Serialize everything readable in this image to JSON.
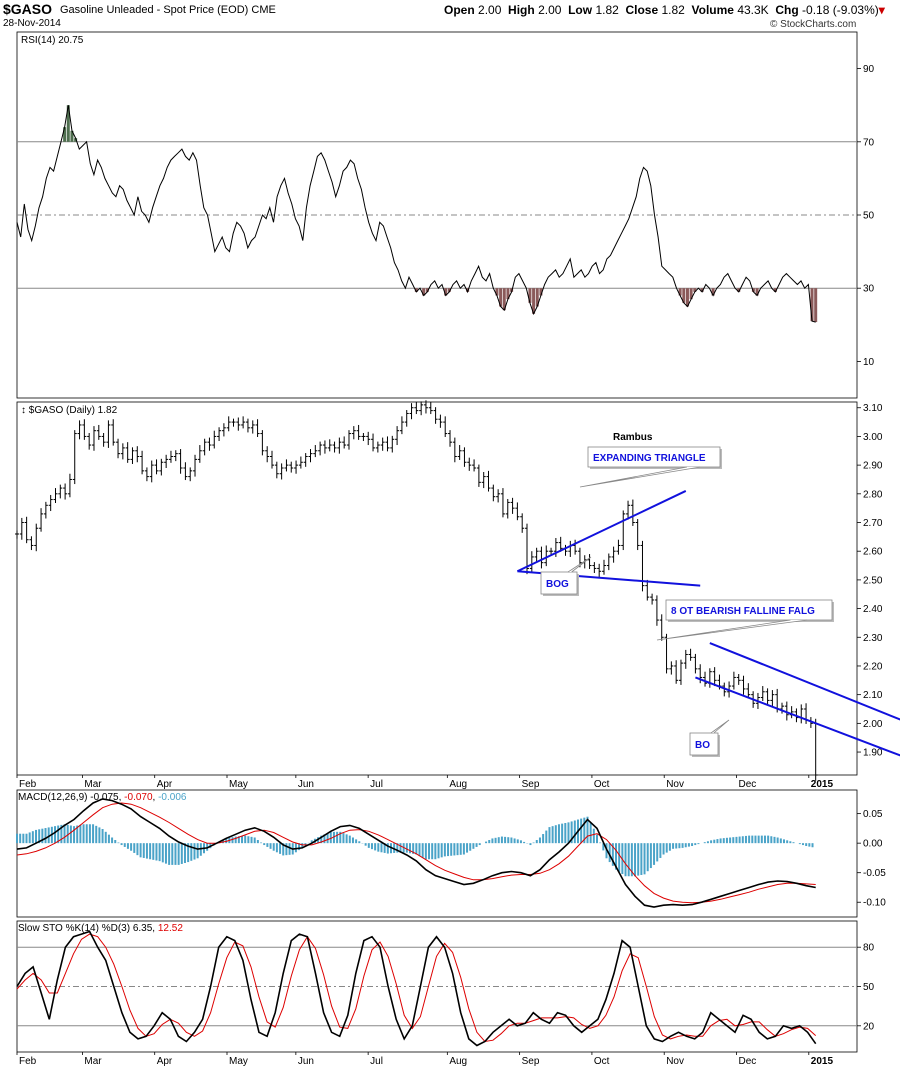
{
  "header": {
    "symbol": "$GASO",
    "name": "Gasoline Unleaded - Spot Price (EOD)",
    "exchange": "CME",
    "date": "28-Nov-2014",
    "open_label": "Open",
    "open": "2.00",
    "high_label": "High",
    "high": "2.00",
    "low_label": "Low",
    "low": "1.82",
    "close_label": "Close",
    "close": "1.82",
    "volume_label": "Volume",
    "volume": "43.3K",
    "chg_label": "Chg",
    "chg": "-0.18 (-9.03%)",
    "brand": "© StockCharts.com"
  },
  "colors": {
    "price": "#000000",
    "annotation": "#1111dd",
    "macd_hist": "#4aa3c8",
    "signal": "#dd0000",
    "rsi_high": "#4f6f4f",
    "rsi_low": "#8b5a5a",
    "grid": "#888888"
  },
  "x_axis": {
    "months": [
      "Feb",
      "Mar",
      "Apr",
      "May",
      "Jun",
      "Jul",
      "Aug",
      "Sep",
      "Oct",
      "Nov",
      "Dec",
      "2015"
    ],
    "month_index": [
      0,
      19,
      40,
      61,
      81,
      102,
      125,
      146,
      167,
      188,
      209,
      230
    ],
    "n_days": 245
  },
  "chart_data": [
    {
      "type": "line",
      "panel": "RSI",
      "legend": "RSI(14) 20.75",
      "ylim": [
        0,
        100
      ],
      "y_ticks": [
        10,
        30,
        50,
        70,
        90
      ],
      "ref_lines": [
        30,
        50,
        70
      ],
      "series": [
        {
          "values": [
            48,
            44,
            53,
            46,
            43,
            47,
            52,
            55,
            60,
            63,
            62,
            66,
            70,
            74,
            80,
            73,
            71,
            68,
            69,
            70,
            64,
            61,
            65,
            63,
            60,
            58,
            56,
            55,
            58,
            57,
            54,
            52,
            50,
            55,
            51,
            50,
            48,
            52,
            55,
            58,
            60,
            63,
            65,
            66,
            67,
            68,
            66,
            65,
            67,
            65,
            58,
            52,
            50,
            45,
            40,
            42,
            44,
            41,
            40,
            45,
            48,
            47,
            45,
            41,
            43,
            44,
            47,
            50,
            49,
            52,
            48,
            55,
            58,
            60,
            56,
            53,
            49,
            47,
            43,
            52,
            58,
            62,
            66,
            67,
            65,
            62,
            59,
            55,
            58,
            62,
            63,
            65,
            64,
            60,
            57,
            52,
            48,
            45,
            43,
            48,
            47,
            44,
            41,
            37,
            35,
            32,
            30,
            33,
            31,
            29,
            30,
            28,
            29,
            31,
            32,
            30,
            31,
            28,
            29,
            31,
            32,
            30,
            31,
            29,
            32,
            34,
            36,
            33,
            32,
            34,
            30,
            28,
            25,
            24,
            27,
            29,
            33,
            34,
            32,
            30,
            26,
            23,
            25,
            28,
            31,
            33,
            34,
            35,
            33,
            34,
            36,
            38,
            33,
            34,
            35,
            33,
            34,
            36,
            37,
            34,
            35,
            38,
            39,
            41,
            43,
            45,
            47,
            49,
            52,
            55,
            60,
            63,
            62,
            58,
            50,
            44,
            36,
            35,
            34,
            33,
            30,
            28,
            26,
            25,
            27,
            29,
            30,
            29,
            31,
            30,
            28,
            30,
            31,
            33,
            34,
            32,
            30,
            29,
            31,
            33,
            32,
            29,
            28,
            30,
            31,
            32,
            30,
            29,
            31,
            33,
            34,
            33,
            32,
            31,
            32,
            30,
            31,
            21,
            20.75
          ]
        }
      ]
    },
    {
      "type": "ohlc",
      "panel": "Price",
      "legend": "$GASO (Daily) 1.82",
      "ylim": [
        1.82,
        3.12
      ],
      "y_ticks": [
        1.9,
        2.0,
        2.1,
        2.2,
        2.3,
        2.4,
        2.5,
        2.6,
        2.7,
        2.8,
        2.9,
        3.0,
        3.1
      ],
      "closes": [
        2.66,
        2.7,
        2.64,
        2.62,
        2.68,
        2.73,
        2.76,
        2.78,
        2.8,
        2.82,
        2.8,
        2.85,
        3.01,
        3.04,
        3.0,
        2.97,
        3.02,
        3.0,
        2.98,
        3.04,
        2.98,
        2.94,
        2.96,
        2.92,
        2.95,
        2.93,
        2.88,
        2.86,
        2.9,
        2.88,
        2.91,
        2.92,
        2.93,
        2.94,
        2.89,
        2.86,
        2.88,
        2.92,
        2.95,
        2.98,
        2.97,
        3.0,
        3.02,
        3.03,
        3.05,
        3.05,
        3.04,
        3.05,
        3.03,
        3.04,
        3.01,
        2.95,
        2.93,
        2.9,
        2.87,
        2.89,
        2.9,
        2.89,
        2.9,
        2.91,
        2.93,
        2.94,
        2.95,
        2.97,
        2.96,
        2.97,
        2.96,
        2.98,
        2.97,
        3.01,
        3.02,
        3.0,
        3.0,
        2.99,
        2.96,
        2.97,
        2.98,
        2.96,
        2.99,
        3.02,
        3.05,
        3.08,
        3.1,
        3.09,
        3.11,
        3.1,
        3.09,
        3.06,
        3.05,
        3.01,
        2.98,
        2.93,
        2.95,
        2.91,
        2.9,
        2.89,
        2.84,
        2.86,
        2.82,
        2.79,
        2.8,
        2.73,
        2.77,
        2.75,
        2.72,
        2.68,
        2.54,
        2.58,
        2.6,
        2.56,
        2.6,
        2.6,
        2.63,
        2.61,
        2.6,
        2.62,
        2.6,
        2.56,
        2.57,
        2.55,
        2.54,
        2.53,
        2.55,
        2.58,
        2.6,
        2.62,
        2.73,
        2.76,
        2.7,
        2.62,
        2.48,
        2.44,
        2.43,
        2.36,
        2.3,
        2.19,
        2.2,
        2.15,
        2.21,
        2.24,
        2.23,
        2.19,
        2.16,
        2.14,
        2.18,
        2.15,
        2.13,
        2.11,
        2.13,
        2.16,
        2.15,
        2.12,
        2.1,
        2.07,
        2.09,
        2.11,
        2.08,
        2.1,
        2.05,
        2.06,
        2.03,
        2.04,
        2.02,
        2.05,
        2.01,
        2.0,
        1.82
      ]
    },
    {
      "type": "line",
      "panel": "MACD",
      "legend_prefix": "MACD(12,26,9)",
      "macd": "-0.075",
      "signal": "-0.070",
      "hist": "-0.006",
      "ylim": [
        -0.125,
        0.09
      ],
      "y_ticks": [
        0.05,
        0.0,
        -0.05,
        -0.1
      ],
      "series": [
        {
          "key": "macd",
          "values": [
            -0.01,
            -0.008,
            0.0,
            0.008,
            0.018,
            0.03,
            0.04,
            0.055,
            0.068,
            0.075,
            0.072,
            0.066,
            0.058,
            0.045,
            0.035,
            0.025,
            0.012,
            0.002,
            -0.005,
            -0.01,
            -0.008,
            0.0,
            0.008,
            0.015,
            0.022,
            0.026,
            0.02,
            0.01,
            -0.003,
            -0.01,
            -0.008,
            0.0,
            0.01,
            0.02,
            0.028,
            0.03,
            0.025,
            0.015,
            0.005,
            -0.005,
            -0.012,
            -0.02,
            -0.03,
            -0.045,
            -0.055,
            -0.06,
            -0.065,
            -0.07,
            -0.068,
            -0.062,
            -0.055,
            -0.05,
            -0.048,
            -0.05,
            -0.055,
            -0.045,
            -0.028,
            -0.015,
            0.0,
            0.02,
            0.04,
            0.025,
            -0.01,
            -0.04,
            -0.07,
            -0.09,
            -0.105,
            -0.108,
            -0.105,
            -0.104,
            -0.105,
            -0.104,
            -0.1,
            -0.095,
            -0.09,
            -0.085,
            -0.08,
            -0.075,
            -0.07,
            -0.066,
            -0.064,
            -0.065,
            -0.068,
            -0.072,
            -0.075
          ]
        },
        {
          "key": "signal",
          "values": [
            -0.02,
            -0.018,
            -0.014,
            -0.008,
            0.0,
            0.01,
            0.022,
            0.035,
            0.048,
            0.06,
            0.066,
            0.068,
            0.066,
            0.06,
            0.052,
            0.044,
            0.035,
            0.025,
            0.015,
            0.006,
            0.0,
            0.0,
            0.003,
            0.008,
            0.014,
            0.02,
            0.022,
            0.018,
            0.01,
            0.002,
            -0.003,
            -0.003,
            0.002,
            0.008,
            0.016,
            0.022,
            0.023,
            0.02,
            0.014,
            0.006,
            -0.002,
            -0.01,
            -0.018,
            -0.028,
            -0.038,
            -0.046,
            -0.052,
            -0.058,
            -0.062,
            -0.062,
            -0.06,
            -0.057,
            -0.054,
            -0.053,
            -0.053,
            -0.051,
            -0.045,
            -0.035,
            -0.022,
            -0.005,
            0.012,
            0.016,
            0.006,
            -0.012,
            -0.035,
            -0.055,
            -0.072,
            -0.085,
            -0.093,
            -0.098,
            -0.1,
            -0.101,
            -0.1,
            -0.098,
            -0.095,
            -0.091,
            -0.087,
            -0.083,
            -0.078,
            -0.074,
            -0.07,
            -0.068,
            -0.068,
            -0.069,
            -0.07
          ]
        }
      ]
    },
    {
      "type": "line",
      "panel": "Slow STO",
      "legend_prefix": "Slow STO %K(14) %D(3)",
      "k": "6.35",
      "d": "12.52",
      "ylim": [
        0,
        100
      ],
      "y_ticks": [
        20,
        50,
        80
      ],
      "ref_lines": [
        20,
        50,
        80
      ],
      "series": [
        {
          "key": "k",
          "values": [
            50,
            60,
            65,
            45,
            25,
            55,
            80,
            88,
            90,
            92,
            80,
            70,
            50,
            30,
            15,
            10,
            12,
            20,
            30,
            25,
            12,
            8,
            15,
            25,
            50,
            80,
            88,
            85,
            70,
            40,
            15,
            12,
            30,
            60,
            85,
            90,
            88,
            60,
            30,
            15,
            12,
            28,
            60,
            85,
            88,
            80,
            50,
            25,
            10,
            20,
            50,
            80,
            88,
            80,
            60,
            30,
            10,
            5,
            8,
            15,
            20,
            25,
            20,
            22,
            30,
            25,
            22,
            30,
            28,
            20,
            15,
            20,
            25,
            40,
            60,
            85,
            80,
            50,
            20,
            10,
            8,
            12,
            15,
            12,
            10,
            15,
            30,
            25,
            20,
            15,
            28,
            25,
            15,
            10,
            12,
            20,
            18,
            20,
            15,
            6.35
          ]
        },
        {
          "key": "d",
          "values": [
            48,
            55,
            60,
            55,
            45,
            45,
            60,
            75,
            86,
            90,
            88,
            80,
            67,
            50,
            32,
            18,
            12,
            14,
            21,
            25,
            22,
            15,
            12,
            16,
            30,
            52,
            72,
            84,
            81,
            65,
            42,
            23,
            19,
            34,
            58,
            78,
            88,
            79,
            59,
            35,
            19,
            18,
            33,
            58,
            78,
            84,
            73,
            52,
            28,
            18,
            27,
            50,
            73,
            83,
            76,
            57,
            33,
            15,
            8,
            9,
            14,
            20,
            22,
            22,
            24,
            26,
            26,
            26,
            27,
            26,
            21,
            18,
            20,
            28,
            42,
            62,
            75,
            72,
            50,
            27,
            13,
            10,
            12,
            13,
            12,
            12,
            20,
            24,
            25,
            20,
            21,
            23,
            23,
            17,
            12,
            14,
            17,
            19,
            18,
            12.52
          ]
        }
      ]
    }
  ],
  "annotations": {
    "author": "Rambus",
    "expanding_triangle": "EXPANDING TRIANGLE",
    "bog": "BOG",
    "flag": "8 OT BEARISH FALLINE FALG",
    "bo": "BO"
  }
}
